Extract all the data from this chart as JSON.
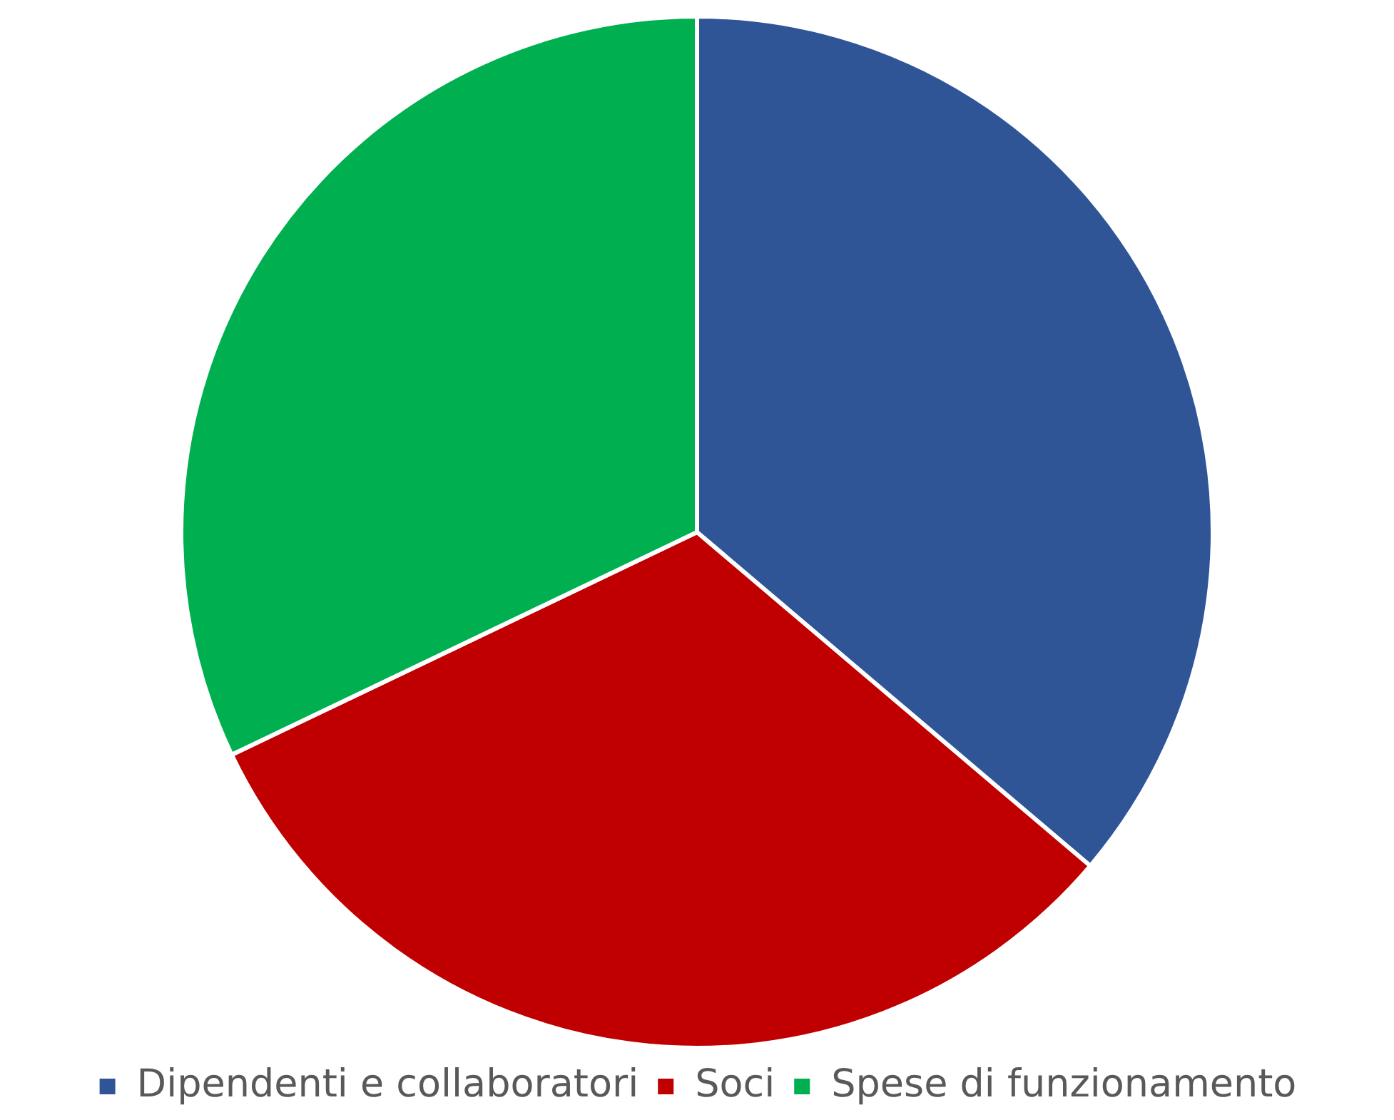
{
  "chart_data": {
    "type": "pie",
    "categories": [
      "Dipendenti e collaboratori",
      "Soci",
      "Spese di funzionamento"
    ],
    "values": [
      36.2,
      31.7,
      32.1
    ],
    "colors": [
      "#2f5597",
      "#c00000",
      "#00b050"
    ],
    "legend": "bottom"
  }
}
